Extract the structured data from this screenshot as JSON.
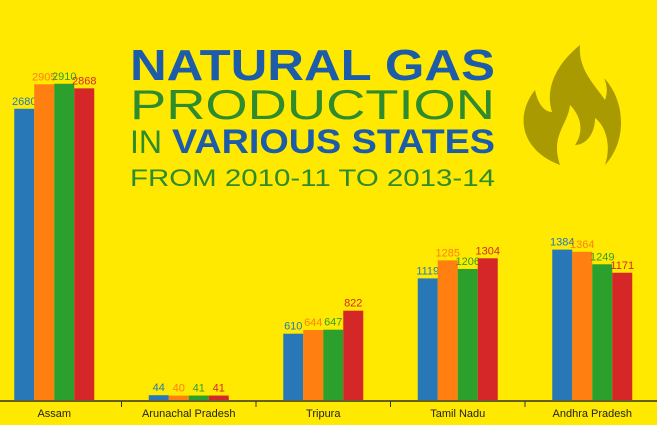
{
  "chart_data": {
    "type": "bar",
    "title": [
      "NATURAL GAS",
      "PRODUCTION",
      "IN",
      "VARIOUS STATES"
    ],
    "subtitle": "FROM 2010-11 TO 2013-14",
    "categories": [
      "Assam",
      "Arunachal Pradesh",
      "Tripura",
      "Tamil Nadu",
      "Andhra Pradesh"
    ],
    "series": [
      {
        "color": "#2878b8",
        "values": [
          2680,
          44,
          610,
          1119,
          1384
        ]
      },
      {
        "color": "#ff7f10",
        "values": [
          2905,
          40,
          644,
          1285,
          1364
        ]
      },
      {
        "color": "#2ca02c",
        "values": [
          2910,
          41,
          647,
          1206,
          1249
        ]
      },
      {
        "color": "#d62728",
        "values": [
          2868,
          41,
          822,
          1304,
          1171
        ]
      }
    ],
    "ylim": [
      0,
      3000
    ]
  }
}
